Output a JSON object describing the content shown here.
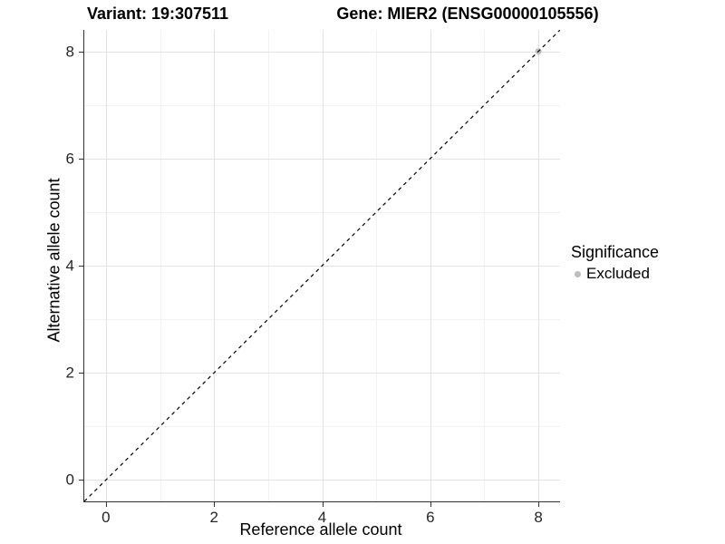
{
  "chart_data": {
    "type": "scatter",
    "title_variant": "Variant: 19:307511",
    "title_gene": "Gene: MIER2 (ENSG00000105556)",
    "xlabel": "Reference allele count",
    "ylabel": "Alternative allele count",
    "xlim": [
      -0.4,
      8.4
    ],
    "ylim": [
      -0.4,
      8.4
    ],
    "x_major_ticks": [
      0,
      2,
      4,
      6,
      8
    ],
    "y_major_ticks": [
      0,
      2,
      4,
      6,
      8
    ],
    "x_minor_ticks": [
      1,
      3,
      5,
      7
    ],
    "y_minor_ticks": [
      1,
      3,
      5,
      7
    ],
    "grid": "major-and-minor",
    "identity_line": {
      "slope": 1,
      "intercept": 0,
      "style": "dashed",
      "color": "#000000"
    },
    "series": [
      {
        "name": "Excluded",
        "color": "#bebebe",
        "marker": "circle",
        "points": [
          {
            "x": 8,
            "y": 8
          }
        ]
      }
    ],
    "legend": {
      "title": "Significance",
      "position": "right",
      "items": [
        {
          "label": "Excluded",
          "color": "#bebebe",
          "marker": "circle"
        }
      ]
    }
  },
  "colors": {
    "background": "#ffffff",
    "grid_major": "#e3e3e3",
    "grid_minor": "#f1f1f1",
    "axis_line": "#333333",
    "tick_text": "#262626",
    "point": "#bebebe"
  }
}
